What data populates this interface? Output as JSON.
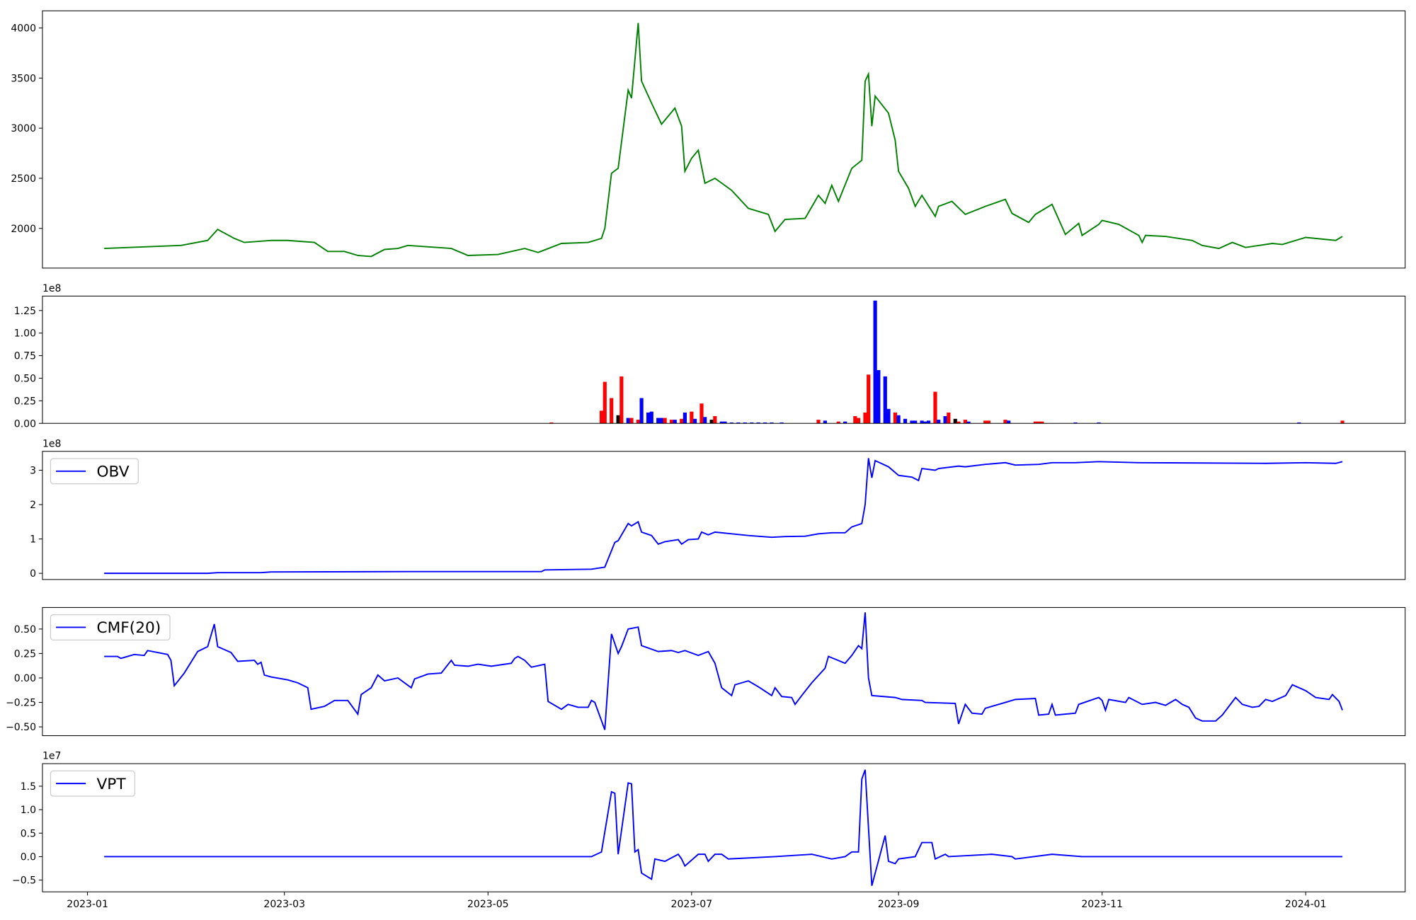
{
  "chart_data": [
    {
      "type": "line",
      "color": "green",
      "xlim": [
        19344.5,
        19752.8
      ],
      "ylim": [
        1604,
        4171
      ],
      "yticks": [
        2000,
        2500,
        3000,
        3500,
        4000
      ],
      "x": [
        19363,
        19386,
        19394,
        19397,
        19402,
        19405,
        19413,
        19418,
        19426,
        19430,
        19435,
        19439,
        19443,
        19447,
        19451,
        19454,
        19467,
        19472,
        19481,
        19489,
        19493,
        19500,
        19508,
        19512,
        19513,
        19515,
        19517,
        19520,
        19521,
        19523,
        19524,
        19527,
        19530,
        19534,
        19536,
        19537,
        19539,
        19541,
        19543,
        19546,
        19551,
        19556,
        19562,
        19564,
        19567,
        19573,
        19577,
        19579,
        19581,
        19583,
        19587,
        19590,
        19591,
        19592,
        19593,
        19594,
        19598,
        19600,
        19601,
        19604,
        19606,
        19608,
        19612,
        19613,
        19617,
        19621,
        19627,
        19633,
        19635,
        19640,
        19642,
        19647,
        19651,
        19655,
        19656,
        19661,
        19662,
        19667,
        19673,
        19674,
        19675,
        19681,
        19689,
        19692,
        19697,
        19701,
        19705,
        19713,
        19716,
        19723,
        19732,
        19734
      ],
      "values": [
        1800,
        1830,
        1880,
        1990,
        1900,
        1860,
        1880,
        1880,
        1860,
        1770,
        1770,
        1730,
        1720,
        1790,
        1800,
        1830,
        1800,
        1730,
        1740,
        1800,
        1760,
        1850,
        1860,
        1900,
        2000,
        2550,
        2600,
        3380,
        3300,
        4050,
        3470,
        3250,
        3040,
        3200,
        3020,
        2570,
        2700,
        2780,
        2450,
        2500,
        2380,
        2200,
        2140,
        1970,
        2090,
        2100,
        2330,
        2250,
        2430,
        2270,
        2600,
        2680,
        3470,
        3540,
        3020,
        3320,
        3150,
        2880,
        2570,
        2400,
        2220,
        2330,
        2120,
        2220,
        2270,
        2140,
        2220,
        2290,
        2150,
        2060,
        2140,
        2240,
        1940,
        2050,
        1930,
        2040,
        2080,
        2040,
        1930,
        1860,
        1930,
        1920,
        1880,
        1830,
        1800,
        1860,
        1810,
        1850,
        1840,
        1910,
        1880,
        1920
      ]
    },
    {
      "type": "bar",
      "offset_text": "1e8",
      "xlim": [
        19344.5,
        19752.8
      ],
      "ylim": [
        0,
        141000000
      ],
      "yticks": [
        {
          "value": 0,
          "label": "0.00"
        },
        {
          "value": 25000000,
          "label": "0.25"
        },
        {
          "value": 50000000,
          "label": "0.50"
        },
        {
          "value": 75000000,
          "label": "0.75"
        },
        {
          "value": 100000000,
          "label": "1.00"
        },
        {
          "value": 125000000,
          "label": "1.25"
        }
      ],
      "x": [
        19497,
        19512,
        19513,
        19515,
        19517,
        19518,
        19520,
        19521,
        19523,
        19524,
        19526,
        19527,
        19529,
        19530,
        19531,
        19533,
        19534,
        19536,
        19537,
        19539,
        19540,
        19542,
        19543,
        19545,
        19546,
        19548,
        19549,
        19551,
        19553,
        19555,
        19557,
        19559,
        19561,
        19563,
        19566,
        19577,
        19579,
        19583,
        19585,
        19588,
        19589,
        19591,
        19592,
        19594,
        19595,
        19597,
        19598,
        19600,
        19601,
        19603,
        19605,
        19606,
        19608,
        19609,
        19610,
        19612,
        19613,
        19615,
        19616,
        19618,
        19619,
        19621,
        19622,
        19627,
        19628,
        19633,
        19634,
        19642,
        19643,
        19644,
        19654,
        19661,
        19721,
        19734
      ],
      "values": [
        1000000,
        14000000,
        46000000,
        28000000,
        9000000,
        52000000,
        6000000,
        6000000,
        4000000,
        28000000,
        12000000,
        13000000,
        6000000,
        6000000,
        6000000,
        4000000,
        4000000,
        5000000,
        12000000,
        13000000,
        5000000,
        22000000,
        7000000,
        4000000,
        8000000,
        2000000,
        2000000,
        1000000,
        1000000,
        1000000,
        1000000,
        1000000,
        1000000,
        1000000,
        1000000,
        4000000,
        3000000,
        2000000,
        2000000,
        8000000,
        6000000,
        12000000,
        54000000,
        136000000,
        59000000,
        52000000,
        16000000,
        12000000,
        9000000,
        5000000,
        3000000,
        3000000,
        3000000,
        2000000,
        3000000,
        35000000,
        4000000,
        8000000,
        12000000,
        5000000,
        2000000,
        4000000,
        2000000,
        3000000,
        3000000,
        4000000,
        3000000,
        2000000,
        2000000,
        2000000,
        1000000,
        1000000,
        1000000,
        3000000
      ],
      "colors": [
        "red",
        "red",
        "red",
        "red",
        "black",
        "red",
        "blue",
        "red",
        "red",
        "blue",
        "blue",
        "blue",
        "blue",
        "blue",
        "red",
        "red",
        "blue",
        "red",
        "blue",
        "red",
        "blue",
        "red",
        "blue",
        "black",
        "red",
        "blue",
        "blue",
        "blue",
        "blue",
        "blue",
        "blue",
        "blue",
        "blue",
        "blue",
        "blue",
        "red",
        "blue",
        "red",
        "blue",
        "red",
        "red",
        "red",
        "red",
        "blue",
        "blue",
        "blue",
        "blue",
        "red",
        "blue",
        "blue",
        "blue",
        "blue",
        "blue",
        "blue",
        "blue",
        "red",
        "blue",
        "blue",
        "red",
        "black",
        "red",
        "red",
        "blue",
        "red",
        "red",
        "red",
        "blue",
        "red",
        "red",
        "red",
        "blue",
        "blue",
        "blue",
        "red"
      ]
    },
    {
      "type": "line",
      "offset_text": "1e8",
      "legend": "upper left",
      "xlim": [
        19344.5,
        19752.8
      ],
      "ylim": [
        -18000000,
        355000000
      ],
      "yticks": [
        {
          "value": 0,
          "label": "0"
        },
        {
          "value": 100000000,
          "label": "1"
        },
        {
          "value": 200000000,
          "label": "2"
        },
        {
          "value": 300000000,
          "label": "3"
        }
      ],
      "x": [
        19363,
        19394,
        19397,
        19410,
        19413,
        19454,
        19494,
        19495,
        19509,
        19513,
        19516,
        19517,
        19520,
        19521,
        19523,
        19524,
        19527,
        19529,
        19531,
        19535,
        19536,
        19538,
        19541,
        19542,
        19544,
        19546,
        19551,
        19556,
        19563,
        19567,
        19573,
        19577,
        19581,
        19585,
        19587,
        19590,
        19591,
        19592,
        19593,
        19594,
        19598,
        19601,
        19605,
        19607,
        19608,
        19612,
        19613,
        19619,
        19621,
        19627,
        19633,
        19636,
        19643,
        19647,
        19654,
        19661,
        19673,
        19711,
        19723,
        19732,
        19734
      ],
      "series": [
        {
          "name": "OBV",
          "color": "blue",
          "values": [
            0,
            0,
            2000000,
            2000000,
            4000000,
            5000000,
            5000000,
            10000000,
            12000000,
            18000000,
            90000000,
            95000000,
            145000000,
            138000000,
            150000000,
            120000000,
            110000000,
            85000000,
            92000000,
            98000000,
            85000000,
            98000000,
            100000000,
            120000000,
            112000000,
            120000000,
            115000000,
            110000000,
            105000000,
            107000000,
            108000000,
            115000000,
            118000000,
            118000000,
            135000000,
            145000000,
            200000000,
            335000000,
            278000000,
            328000000,
            310000000,
            285000000,
            280000000,
            270000000,
            305000000,
            300000000,
            305000000,
            312000000,
            310000000,
            317000000,
            322000000,
            315000000,
            317000000,
            322000000,
            322000000,
            325000000,
            322000000,
            320000000,
            322000000,
            320000000,
            325000000
          ]
        }
      ]
    },
    {
      "type": "line",
      "legend": "upper left",
      "xlim": [
        19344.5,
        19752.8
      ],
      "ylim": [
        -0.59,
        0.72
      ],
      "yticks": [
        {
          "value": -0.5,
          "label": "−0.50"
        },
        {
          "value": -0.25,
          "label": "−0.25"
        },
        {
          "value": 0,
          "label": "0.00"
        },
        {
          "value": 0.25,
          "label": "0.25"
        },
        {
          "value": 0.5,
          "label": "0.50"
        }
      ],
      "x": [
        19363,
        19367,
        19368,
        19372,
        19375,
        19376,
        19382,
        19383,
        19384,
        19387,
        19391,
        19394,
        19396,
        19397,
        19401,
        19403,
        19408,
        19409,
        19410,
        19411,
        19413,
        19418,
        19421,
        19424,
        19425,
        19429,
        19432,
        19436,
        19439,
        19440,
        19443,
        19445,
        19447,
        19451,
        19455,
        19456,
        19460,
        19464,
        19467,
        19468,
        19472,
        19475,
        19479,
        19485,
        19486,
        19487,
        19489,
        19491,
        19495,
        19496,
        19500,
        19502,
        19505,
        19508,
        19509,
        19510,
        19513,
        19515,
        19517,
        19518,
        19520,
        19523,
        19524,
        19529,
        19533,
        19535,
        19537,
        19541,
        19544,
        19546,
        19548,
        19551,
        19552,
        19556,
        19559,
        19563,
        19564,
        19566,
        19569,
        19570,
        19572,
        19575,
        19579,
        19580,
        19585,
        19587,
        19589,
        19590,
        19591,
        19592,
        19593,
        19600,
        19602,
        19608,
        19609,
        19618,
        19619,
        19621,
        19623,
        19626,
        19627,
        19633,
        19636,
        19642,
        19643,
        19646,
        19647,
        19648,
        19654,
        19655,
        19661,
        19662,
        19663,
        19664,
        19669,
        19670,
        19674,
        19678,
        19681,
        19684,
        19686,
        19688,
        19690,
        19692,
        19696,
        19698,
        19702,
        19704,
        19707,
        19709,
        19711,
        19713,
        19717,
        19719,
        19723,
        19726,
        19730,
        19731,
        19733,
        19734
      ],
      "series": [
        {
          "name": "CMF(20)",
          "color": "blue",
          "values": [
            0.22,
            0.22,
            0.2,
            0.24,
            0.23,
            0.28,
            0.24,
            0.18,
            -0.08,
            0.05,
            0.27,
            0.32,
            0.55,
            0.32,
            0.26,
            0.17,
            0.18,
            0.14,
            0.16,
            0.03,
            0.01,
            -0.02,
            -0.05,
            -0.1,
            -0.32,
            -0.29,
            -0.23,
            -0.23,
            -0.37,
            -0.17,
            -0.1,
            0.03,
            -0.03,
            0,
            -0.1,
            -0.01,
            0.04,
            0.05,
            0.18,
            0.13,
            0.12,
            0.14,
            0.12,
            0.15,
            0.2,
            0.22,
            0.18,
            0.11,
            0.14,
            -0.24,
            -0.32,
            -0.27,
            -0.3,
            -0.3,
            -0.23,
            -0.25,
            -0.53,
            0.45,
            0.25,
            0.32,
            0.5,
            0.52,
            0.33,
            0.27,
            0.28,
            0.26,
            0.28,
            0.23,
            0.27,
            0.15,
            -0.1,
            -0.18,
            -0.07,
            -0.03,
            -0.09,
            -0.18,
            -0.1,
            -0.19,
            -0.2,
            -0.27,
            -0.18,
            -0.05,
            0.1,
            0.22,
            0.15,
            0.23,
            0.33,
            0.3,
            0.67,
            0,
            -0.18,
            -0.2,
            -0.22,
            -0.23,
            -0.25,
            -0.26,
            -0.47,
            -0.27,
            -0.36,
            -0.37,
            -0.31,
            -0.25,
            -0.22,
            -0.21,
            -0.38,
            -0.37,
            -0.27,
            -0.38,
            -0.36,
            -0.27,
            -0.2,
            -0.23,
            -0.33,
            -0.22,
            -0.25,
            -0.2,
            -0.27,
            -0.25,
            -0.28,
            -0.22,
            -0.27,
            -0.3,
            -0.41,
            -0.44,
            -0.44,
            -0.38,
            -0.2,
            -0.27,
            -0.3,
            -0.29,
            -0.22,
            -0.24,
            -0.18,
            -0.07,
            -0.13,
            -0.2,
            -0.22,
            -0.17,
            -0.24,
            -0.33
          ]
        }
      ]
    },
    {
      "type": "line",
      "offset_text": "1e7",
      "legend": "upper left",
      "xlim": [
        19344.5,
        19752.8
      ],
      "ylim": [
        -7500000,
        19800000
      ],
      "yticks": [
        {
          "value": -5000000,
          "label": "−0.5"
        },
        {
          "value": 0,
          "label": "0.0"
        },
        {
          "value": 5000000,
          "label": "0.5"
        },
        {
          "value": 10000000,
          "label": "1.0"
        },
        {
          "value": 15000000,
          "label": "1.5"
        }
      ],
      "xticks": [
        {
          "value": 19358,
          "label": "2023-01"
        },
        {
          "value": 19417,
          "label": "2023-03"
        },
        {
          "value": 19478,
          "label": "2023-05"
        },
        {
          "value": 19539,
          "label": "2023-07"
        },
        {
          "value": 19601,
          "label": "2023-09"
        },
        {
          "value": 19662,
          "label": "2023-11"
        },
        {
          "value": 19723,
          "label": "2024-01"
        }
      ],
      "x": [
        19363,
        19509,
        19512,
        19515,
        19516,
        19517,
        19520,
        19521,
        19522,
        19523,
        19524,
        19527,
        19528,
        19531,
        19535,
        19536,
        19537,
        19541,
        19543,
        19544,
        19546,
        19548,
        19550,
        19564,
        19575,
        19581,
        19585,
        19587,
        19589,
        19590,
        19591,
        19593,
        19597,
        19598,
        19600,
        19601,
        19606,
        19608,
        19611,
        19612,
        19615,
        19616,
        19629,
        19635,
        19636,
        19647,
        19656,
        19734
      ],
      "series": [
        {
          "name": "VPT",
          "color": "blue",
          "values": [
            0,
            0,
            1000000,
            13800000,
            13500000,
            500000,
            15700000,
            15500000,
            1000000,
            1500000,
            -3500000,
            -4800000,
            -500000,
            -1000000,
            500000,
            -500000,
            -2000000,
            500000,
            500000,
            -1000000,
            500000,
            500000,
            -500000,
            0,
            500000,
            -500000,
            0,
            1000000,
            1000000,
            16500000,
            18500000,
            -6200000,
            4500000,
            -1000000,
            -1500000,
            -500000,
            0,
            3000000,
            3000000,
            -500000,
            500000,
            0,
            500000,
            0,
            -500000,
            500000,
            0,
            0
          ]
        }
      ]
    }
  ]
}
